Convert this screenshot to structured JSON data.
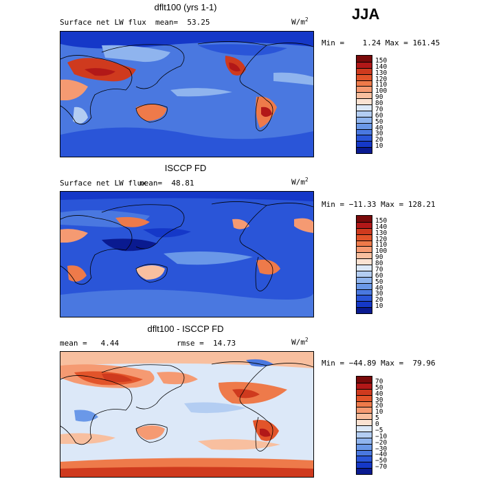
{
  "season": "JJA",
  "panels": [
    {
      "title": "dflt100 (yrs 1-1)",
      "left_text": "Surface net LW flux",
      "mid_text": "mean=  53.25",
      "units": "W/m",
      "units_sup": "2",
      "minmax": "Min =    1.24 Max = 161.45",
      "colorbar_labels": [
        "150",
        "140",
        "130",
        "120",
        "110",
        "100",
        "90",
        "80",
        "70",
        "60",
        "50",
        "40",
        "30",
        "20",
        "10"
      ]
    },
    {
      "title": "ISCCP FD",
      "left_text": "Surface net LW flux",
      "mid_text": "mean=  48.81",
      "units": "W/m",
      "units_sup": "2",
      "minmax": "Min = −11.33 Max = 128.21",
      "colorbar_labels": [
        "150",
        "140",
        "130",
        "120",
        "110",
        "100",
        "90",
        "80",
        "70",
        "60",
        "50",
        "40",
        "30",
        "20",
        "10"
      ]
    },
    {
      "title": "dflt100 - ISCCP FD",
      "left_text": "mean =   4.44",
      "mid_text": "rmse =  14.73",
      "units": "W/m",
      "units_sup": "2",
      "minmax": "Min = −44.89 Max =  79.96",
      "colorbar_labels": [
        "70",
        "50",
        "40",
        "30",
        "20",
        "10",
        "5",
        "0",
        "−5",
        "−10",
        "−20",
        "−30",
        "−40",
        "−50",
        "−70"
      ]
    }
  ],
  "palette": [
    "#7a0a0a",
    "#b21818",
    "#cf3a1e",
    "#e2542a",
    "#ee7a4a",
    "#f59a72",
    "#f8bf9f",
    "#fbe2d2",
    "#dce8f8",
    "#b3cdf2",
    "#8fb4ee",
    "#6a98e8",
    "#4a78e0",
    "#2a55d8",
    "#1538c8",
    "#0a1a90"
  ]
}
